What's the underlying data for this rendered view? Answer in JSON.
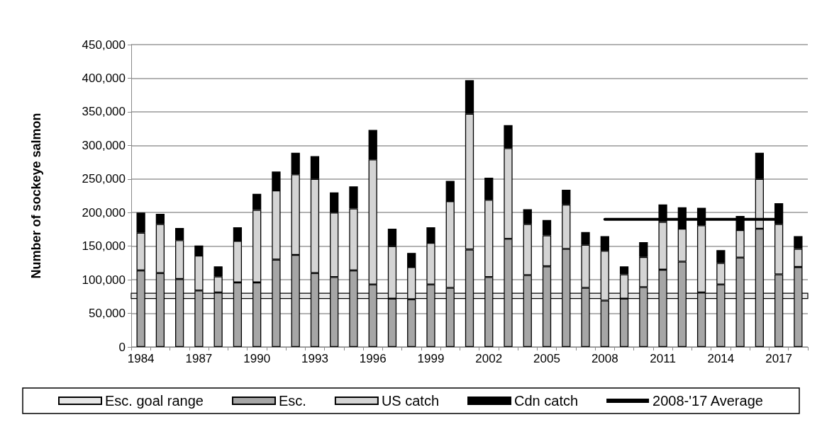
{
  "chart_data": {
    "type": "bar",
    "stacked": true,
    "ylabel": "Number of sockeye salmon",
    "categories": [
      "1984",
      null,
      null,
      "1987",
      null,
      null,
      "1990",
      null,
      null,
      "1993",
      null,
      null,
      "1996",
      null,
      null,
      "1999",
      null,
      null,
      "2002",
      null,
      null,
      "2005",
      null,
      null,
      "2008",
      null,
      null,
      "2011",
      null,
      null,
      "2014",
      null,
      null,
      "2017",
      null
    ],
    "series": [
      {
        "name": "Esc.",
        "color": "#a6a6a6",
        "values": [
          114000,
          110000,
          101000,
          84000,
          81000,
          96000,
          96000,
          130000,
          137000,
          110000,
          104000,
          114000,
          93000,
          72000,
          71000,
          93000,
          88000,
          145000,
          104000,
          161000,
          107000,
          120000,
          146000,
          88000,
          69000,
          72000,
          89000,
          115000,
          127000,
          81000,
          93000,
          133000,
          176000,
          108000,
          119000
        ]
      },
      {
        "name": "US catch",
        "color": "#d4d4d4",
        "values": [
          56000,
          73000,
          58000,
          52000,
          24000,
          62000,
          108000,
          103000,
          120000,
          140000,
          96000,
          92000,
          186000,
          78000,
          48000,
          62000,
          129000,
          202000,
          115000,
          135000,
          76000,
          46000,
          66000,
          64000,
          74000,
          36000,
          45000,
          71000,
          49000,
          100000,
          32000,
          41000,
          74000,
          75000,
          27000
        ]
      },
      {
        "name": "Cdn catch",
        "color": "#000000",
        "values": [
          30000,
          15000,
          18000,
          15000,
          15000,
          20000,
          24000,
          28000,
          32000,
          34000,
          30000,
          33000,
          44000,
          26000,
          21000,
          23000,
          30000,
          50000,
          33000,
          34000,
          22000,
          23000,
          22000,
          19000,
          22000,
          12000,
          22000,
          26000,
          32000,
          26000,
          19000,
          21000,
          39000,
          31000,
          19000
        ]
      },
      {
        "name": "2008-'17 Average",
        "type": "line",
        "color": "#000000",
        "values": [
          null,
          null,
          null,
          null,
          null,
          null,
          null,
          null,
          null,
          null,
          null,
          null,
          null,
          null,
          null,
          null,
          null,
          null,
          null,
          null,
          null,
          null,
          null,
          null,
          190000,
          190000,
          190000,
          190000,
          190000,
          190000,
          190000,
          190000,
          190000,
          190000,
          null
        ]
      }
    ],
    "bands": [
      {
        "axis": "y",
        "from": 72000,
        "to": 80000,
        "label": "Esc. goal range",
        "color": "#e6e6e6"
      }
    ],
    "ylim": [
      0,
      450000
    ],
    "yticks": [
      0,
      {
        "value": 50000,
        "label": "50,000"
      },
      {
        "value": 100000,
        "label": "100,000"
      },
      {
        "value": 150000,
        "label": "150,000"
      },
      {
        "value": 200000,
        "label": "200,000"
      },
      {
        "value": 250000,
        "label": "250,000"
      },
      {
        "value": 300000,
        "label": "300,000"
      },
      {
        "value": 350000,
        "label": "350,000"
      },
      {
        "value": 400000,
        "label": "400,000"
      },
      {
        "value": 450000,
        "label": "450,000"
      }
    ],
    "grid": "y",
    "legend": "bottom",
    "marker": "none",
    "line_style": "solid"
  }
}
